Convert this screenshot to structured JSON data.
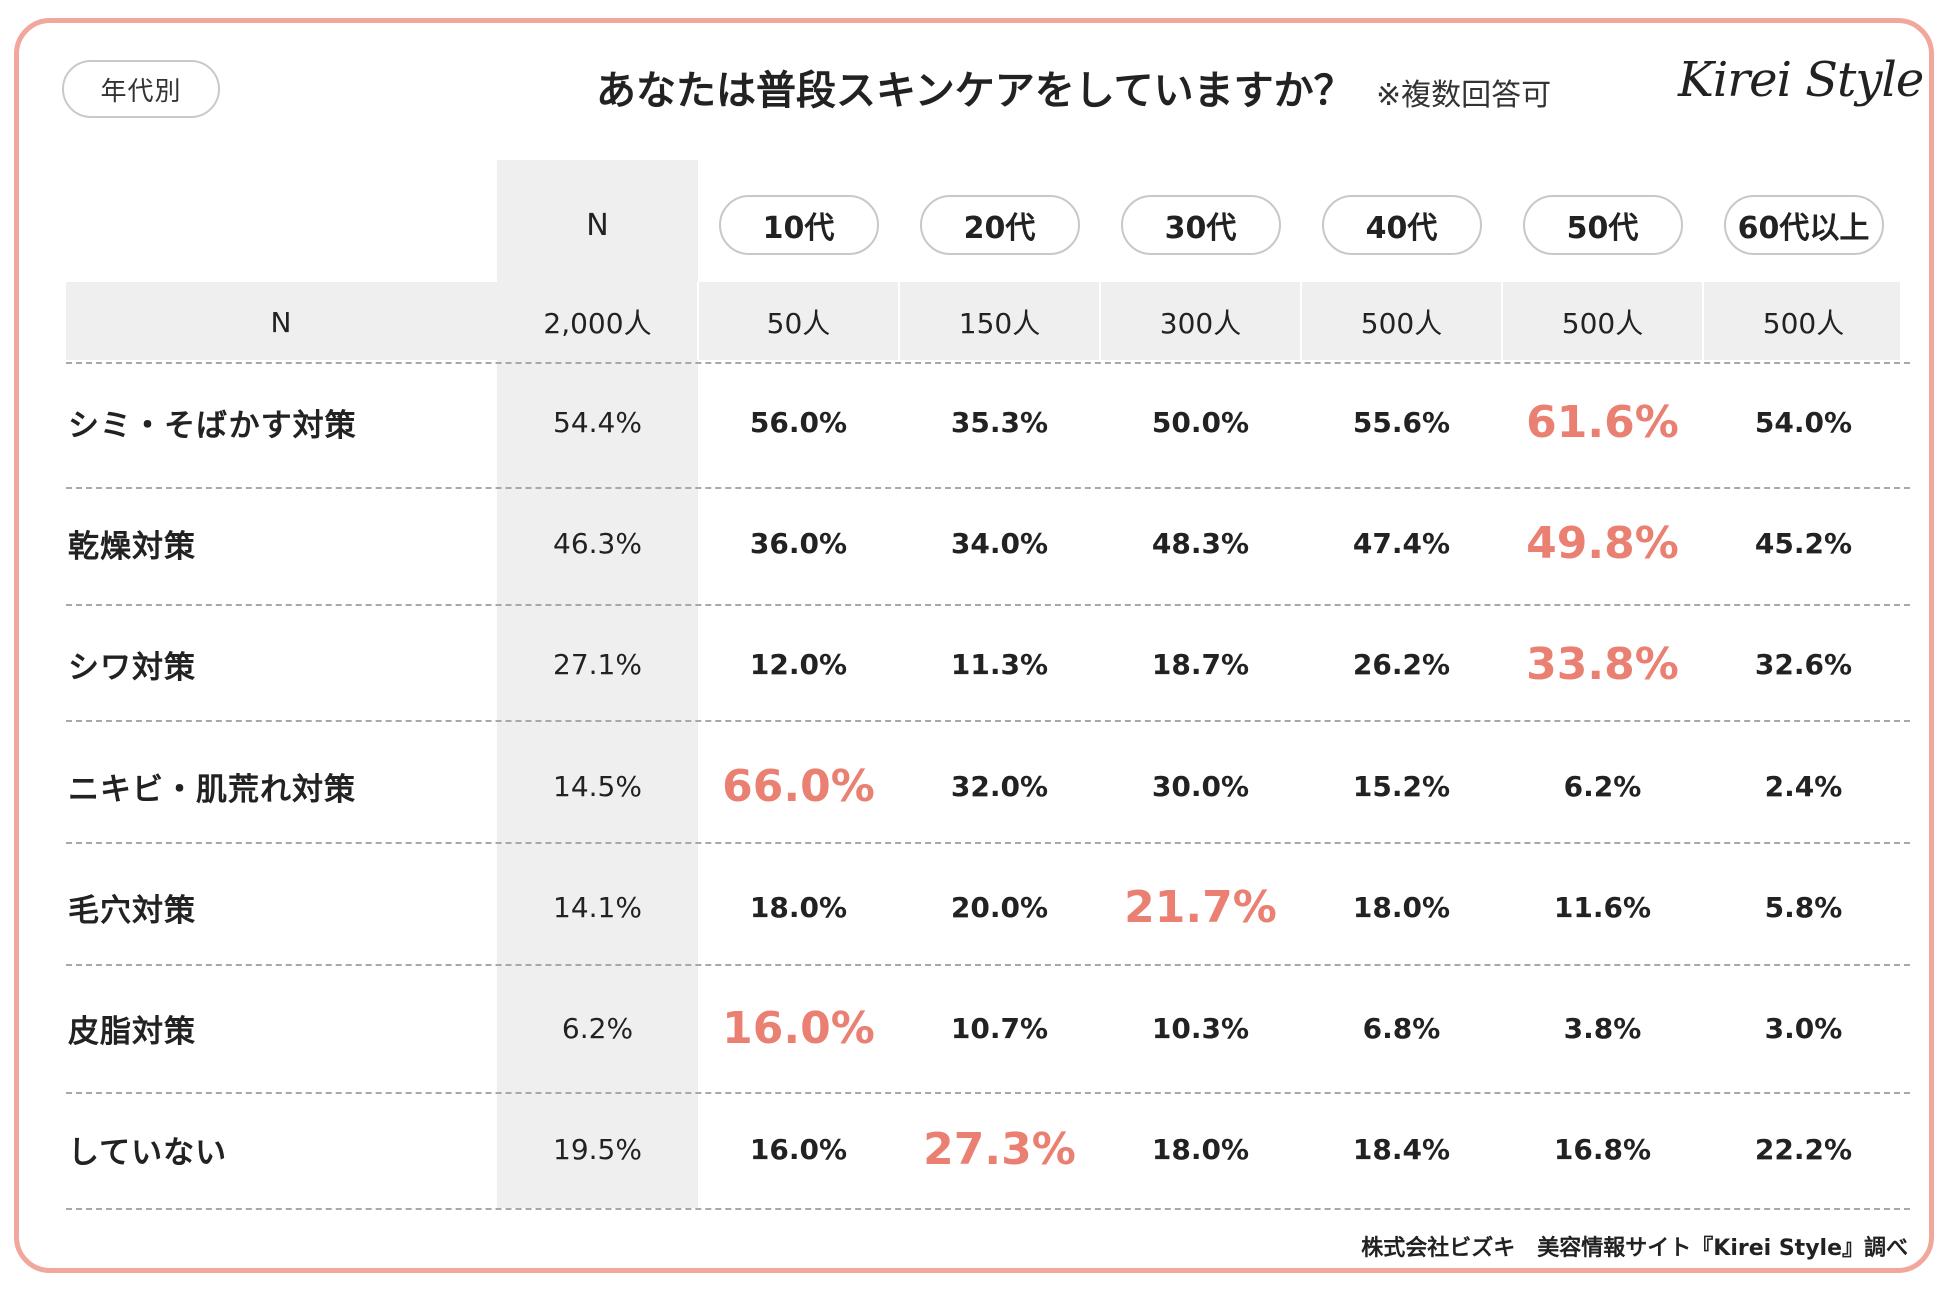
{
  "header": {
    "tag": "年代別",
    "title": "あなたは普段スキンケアをしていますか？",
    "note": "※複数回答可",
    "logo": "Kirei Style"
  },
  "footer": "株式会社ビズキ　美容情報サイト『Kirei Style』調べ",
  "colors": {
    "frame": "#f1a79b",
    "highlight": "#ea8072",
    "band": "#efefef"
  },
  "chart_data": {
    "type": "table",
    "title": "あなたは普段スキンケアをしていますか？",
    "columns": [
      "N",
      "10代",
      "20代",
      "30代",
      "40代",
      "50代",
      "60代以上"
    ],
    "sample_row": {
      "label": "N",
      "values": [
        "2,000人",
        "50人",
        "150人",
        "300人",
        "500人",
        "500人",
        "500人"
      ]
    },
    "rows": [
      {
        "label": "シミ・そばかす対策",
        "values": [
          "54.4%",
          "56.0%",
          "35.3%",
          "50.0%",
          "55.6%",
          "61.6%",
          "54.0%"
        ],
        "highlight": 5
      },
      {
        "label": "乾燥対策",
        "values": [
          "46.3%",
          "36.0%",
          "34.0%",
          "48.3%",
          "47.4%",
          "49.8%",
          "45.2%"
        ],
        "highlight": 5
      },
      {
        "label": "シワ対策",
        "values": [
          "27.1%",
          "12.0%",
          "11.3%",
          "18.7%",
          "26.2%",
          "33.8%",
          "32.6%"
        ],
        "highlight": 5
      },
      {
        "label": "ニキビ・肌荒れ対策",
        "values": [
          "14.5%",
          "66.0%",
          "32.0%",
          "30.0%",
          "15.2%",
          "6.2%",
          "2.4%"
        ],
        "highlight": 1
      },
      {
        "label": "毛穴対策",
        "values": [
          "14.1%",
          "18.0%",
          "20.0%",
          "21.7%",
          "18.0%",
          "11.6%",
          "5.8%"
        ],
        "highlight": 3
      },
      {
        "label": "皮脂対策",
        "values": [
          "6.2%",
          "16.0%",
          "10.7%",
          "10.3%",
          "6.8%",
          "3.8%",
          "3.0%"
        ],
        "highlight": 1
      },
      {
        "label": "していない",
        "values": [
          "19.5%",
          "16.0%",
          "27.3%",
          "18.0%",
          "18.4%",
          "16.8%",
          "22.2%"
        ],
        "highlight": 2
      }
    ]
  }
}
